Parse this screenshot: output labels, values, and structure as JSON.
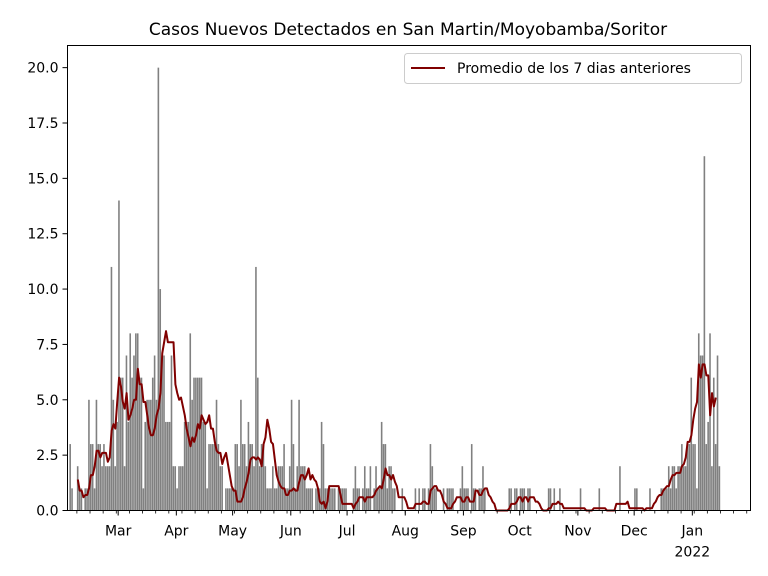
{
  "chart_data": {
    "type": "bar",
    "title": "Casos Nuevos Detectados en San Martin/Moyobamba/Soritor",
    "xlabel": "",
    "ylabel": "",
    "ylim": [
      0,
      21
    ],
    "y_ticks": [
      "0.0",
      "2.5",
      "5.0",
      "7.5",
      "10.0",
      "12.5",
      "15.0",
      "17.5",
      "20.0"
    ],
    "x_ticks": [
      "Mar",
      "Apr",
      "May",
      "Jun",
      "Jul",
      "Aug",
      "Sep",
      "Oct",
      "Nov",
      "Dec",
      "Jan"
    ],
    "x_year_label": "2022",
    "x_range": [
      "2021-02-02",
      "2022-02-01"
    ],
    "grid": false,
    "legend": {
      "position": "top-right",
      "entries": [
        "Promedio de los 7 dias anteriores"
      ]
    },
    "colors": {
      "bars": "#808080",
      "line": "#800000"
    },
    "series": [
      {
        "type": "bar",
        "x_start": "2021-02-02",
        "values": [
          0,
          3,
          1,
          0,
          0,
          2,
          1,
          1,
          0,
          1,
          1,
          5,
          3,
          3,
          1,
          5,
          3,
          3,
          2,
          3,
          2,
          2,
          2,
          11,
          5,
          2,
          4,
          14,
          6,
          6,
          2,
          7,
          4,
          8,
          6,
          7,
          8,
          8,
          6,
          6,
          1,
          4,
          5,
          5,
          5,
          6,
          7,
          5,
          20,
          10,
          7,
          7,
          4,
          4,
          4,
          7,
          2,
          2,
          1,
          2,
          2,
          2,
          4,
          4,
          4,
          8,
          5,
          6,
          6,
          6,
          6,
          6,
          4,
          4,
          1,
          3,
          3,
          3,
          3,
          5,
          3,
          2,
          2,
          0,
          1,
          1,
          1,
          1,
          1,
          3,
          3,
          2,
          5,
          3,
          3,
          2,
          4,
          3,
          3,
          2,
          11,
          6,
          2,
          3,
          3,
          2,
          1,
          1,
          1,
          2,
          1,
          1,
          2,
          2,
          2,
          3,
          1,
          1,
          2,
          5,
          3,
          1,
          2,
          5,
          2,
          2,
          2,
          1,
          1,
          1,
          1,
          0,
          1,
          1,
          1,
          4,
          3,
          1,
          1,
          1,
          1,
          1,
          1,
          0,
          1,
          1,
          1,
          1,
          1,
          0,
          0,
          0,
          1,
          2,
          1,
          1,
          0,
          1,
          2,
          1,
          1,
          2,
          0,
          1,
          2,
          1,
          1,
          4,
          3,
          3,
          1,
          2,
          2,
          1,
          1,
          0,
          0,
          0,
          1,
          0,
          0,
          0,
          0,
          0,
          0,
          1,
          0,
          1,
          0,
          1,
          1,
          0,
          1,
          3,
          2,
          1,
          1,
          0,
          0,
          0,
          1,
          0,
          1,
          1,
          1,
          1,
          0,
          0,
          0,
          1,
          2,
          1,
          1,
          1,
          0,
          3,
          1,
          1,
          0,
          1,
          1,
          2,
          1,
          0,
          0,
          0,
          0,
          0,
          0,
          0,
          0,
          0,
          0,
          0,
          0,
          1,
          1,
          0,
          1,
          1,
          0,
          1,
          1,
          1,
          0,
          1,
          1,
          0,
          0,
          0,
          0,
          0,
          0,
          0,
          0,
          0,
          1,
          1,
          0,
          1,
          0,
          0,
          1,
          0,
          0,
          0,
          0,
          0,
          0,
          0,
          0,
          0,
          0,
          1,
          0,
          0,
          0,
          0,
          0,
          0,
          0,
          0,
          0,
          1,
          0,
          0,
          0,
          0,
          0,
          0,
          0,
          0,
          0,
          0,
          2,
          0,
          0,
          0,
          0,
          0,
          0,
          0,
          1,
          1,
          0,
          0,
          0,
          0,
          0,
          0,
          1,
          0,
          0,
          0,
          0,
          0,
          1,
          1,
          1,
          1,
          2,
          1,
          2,
          2,
          1,
          2,
          2,
          3,
          2,
          2,
          3,
          3,
          6,
          3,
          3,
          1,
          8,
          7,
          7,
          16,
          3,
          4,
          8,
          2,
          6,
          3,
          7,
          2
        ]
      },
      {
        "type": "line",
        "name": "Promedio de los 7 dias anteriores",
        "x_start": "2021-02-07",
        "values": [
          1.4,
          0.9,
          0.9,
          0.6,
          0.7,
          0.7,
          1.0,
          1.6,
          1.6,
          2.0,
          2.7,
          2.7,
          2.4,
          2.6,
          2.6,
          2.6,
          2.2,
          2.4,
          3.6,
          3.9,
          3.7,
          4.9,
          6.0,
          5.6,
          4.9,
          4.6,
          5.3,
          4.1,
          4.3,
          4.6,
          5.0,
          5.0,
          6.4,
          5.7,
          5.7,
          4.9,
          4.9,
          4.3,
          3.7,
          3.4,
          3.4,
          3.7,
          4.3,
          4.6,
          5.3,
          7.1,
          7.6,
          8.1,
          7.6,
          7.6,
          7.6,
          7.6,
          5.7,
          5.3,
          5.0,
          5.1,
          4.7,
          4.3,
          3.7,
          3.3,
          2.9,
          3.3,
          3.1,
          3.4,
          3.9,
          3.7,
          4.3,
          4.1,
          3.9,
          4.0,
          4.3,
          3.7,
          3.7,
          3.1,
          2.7,
          2.6,
          2.6,
          2.1,
          2.4,
          2.6,
          2.1,
          1.6,
          1.1,
          0.9,
          0.9,
          0.4,
          0.4,
          0.4,
          0.6,
          1.0,
          1.3,
          1.7,
          2.3,
          2.4,
          2.4,
          2.3,
          2.4,
          2.3,
          2.0,
          3.0,
          3.3,
          4.1,
          3.7,
          3.1,
          3.0,
          2.3,
          1.6,
          1.3,
          1.1,
          1.0,
          1.0,
          0.7,
          0.7,
          0.9,
          0.9,
          1.0,
          0.9,
          0.9,
          1.3,
          1.6,
          1.6,
          1.4,
          1.6,
          1.9,
          1.4,
          1.6,
          1.4,
          1.3,
          1.0,
          0.4,
          0.3,
          0.4,
          0.1,
          0.4,
          1.1,
          1.1,
          1.1,
          1.1,
          1.1,
          1.1,
          0.7,
          0.3,
          0.3,
          0.3,
          0.3,
          0.3,
          0.3,
          0.1,
          0.3,
          0.4,
          0.6,
          0.6,
          0.6,
          0.4,
          0.6,
          0.6,
          0.6,
          0.6,
          0.7,
          0.9,
          1.0,
          1.1,
          1.0,
          1.4,
          1.9,
          1.6,
          1.6,
          1.4,
          1.6,
          1.3,
          1.1,
          0.6,
          0.6,
          0.6,
          0.6,
          0.4,
          0.1,
          0.1,
          0.1,
          0.1,
          0.3,
          0.3,
          0.3,
          0.3,
          0.4,
          0.4,
          0.3,
          0.3,
          0.9,
          1.0,
          1.1,
          1.1,
          0.9,
          0.9,
          0.7,
          0.4,
          0.3,
          0.1,
          0.1,
          0.1,
          0.3,
          0.4,
          0.6,
          0.6,
          0.6,
          0.4,
          0.4,
          0.6,
          0.6,
          0.4,
          0.4,
          0.4,
          0.9,
          0.9,
          0.7,
          0.7,
          0.9,
          1.0,
          1.0,
          0.7,
          0.6,
          0.4,
          0.3,
          0.0,
          0.0,
          0.0,
          0.0,
          0.0,
          0.0,
          0.0,
          0.1,
          0.3,
          0.3,
          0.3,
          0.4,
          0.6,
          0.6,
          0.4,
          0.6,
          0.6,
          0.4,
          0.6,
          0.6,
          0.6,
          0.4,
          0.4,
          0.3,
          0.1,
          0.0,
          0.0,
          0.0,
          0.1,
          0.1,
          0.3,
          0.3,
          0.3,
          0.4,
          0.3,
          0.3,
          0.1,
          0.1,
          0.1,
          0.1,
          0.1,
          0.1,
          0.1,
          0.1,
          0.1,
          0.1,
          0.1,
          0.1,
          0.0,
          0.0,
          0.0,
          0.0,
          0.1,
          0.1,
          0.1,
          0.1,
          0.1,
          0.1,
          0.1,
          0.0,
          0.0,
          0.0,
          0.0,
          0.0,
          0.3,
          0.3,
          0.3,
          0.3,
          0.3,
          0.3,
          0.4,
          0.1,
          0.1,
          0.1,
          0.1,
          0.1,
          0.1,
          0.1,
          0.1,
          0.0,
          0.1,
          0.1,
          0.1,
          0.1,
          0.3,
          0.4,
          0.6,
          0.7,
          0.7,
          0.9,
          1.0,
          1.1,
          1.1,
          1.4,
          1.6,
          1.6,
          1.7,
          1.7,
          1.7,
          2.0,
          2.1,
          2.4,
          3.1,
          3.1,
          3.4,
          4.1,
          4.6,
          4.9,
          6.6,
          6.0,
          6.6,
          6.6,
          6.1,
          6.1,
          4.3,
          5.3,
          4.7,
          5.1
        ]
      }
    ]
  }
}
